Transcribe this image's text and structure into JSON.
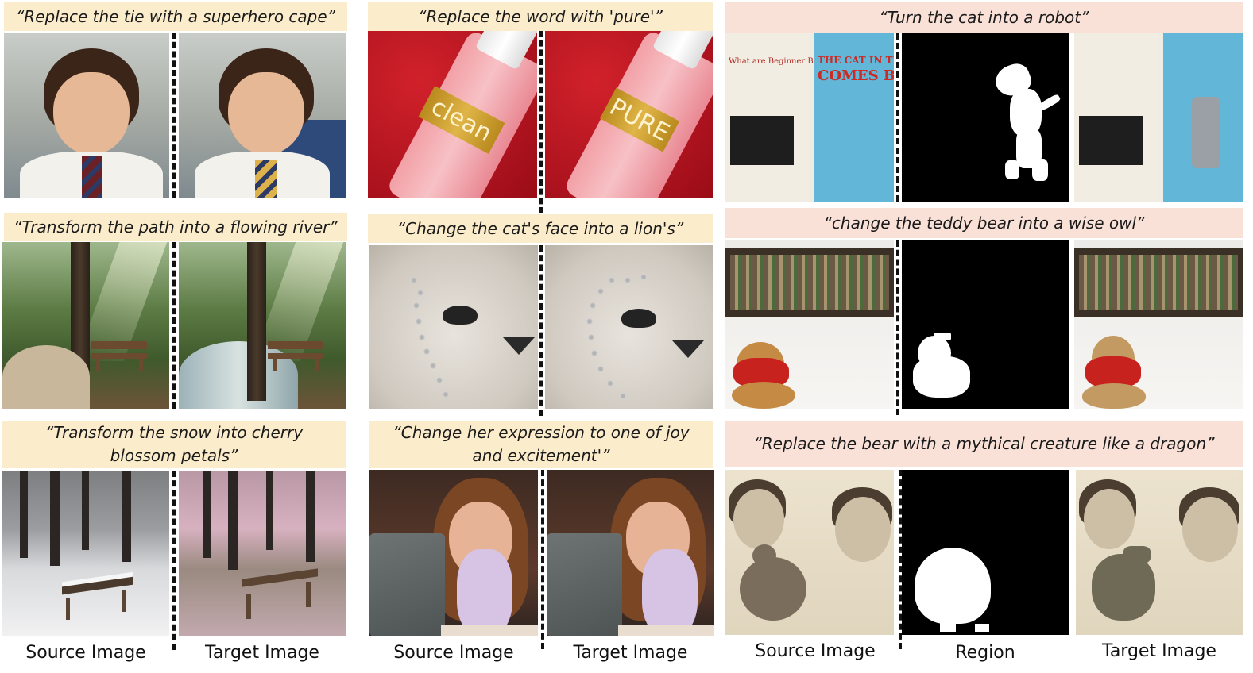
{
  "panels": [
    {
      "id": "tie",
      "prompt": "“Replace the tie with a superhero cape”",
      "prompt_color": "yellow"
    },
    {
      "id": "path",
      "prompt": "“Transform the path into a flowing river”",
      "prompt_color": "yellow"
    },
    {
      "id": "snow",
      "prompt_line1": "“Transform the snow into cherry",
      "prompt_line2": "blossom petals”",
      "prompt_color": "yellow"
    },
    {
      "id": "word",
      "prompt": "“Replace the word with 'pure'”",
      "prompt_color": "yellow",
      "source_text": "clean",
      "target_text": "PURE"
    },
    {
      "id": "cat-face",
      "prompt": "“Change the cat's face into a lion's”",
      "prompt_color": "yellow"
    },
    {
      "id": "expression",
      "prompt_line1": "“Change her expression to one of joy",
      "prompt_line2": "and excitement'”",
      "prompt_color": "yellow"
    },
    {
      "id": "robot",
      "prompt": "“Turn the cat into a robot”",
      "prompt_color": "pink",
      "book_title_line1": "THE CAT IN THE HA",
      "book_title_line2": "COMES BA",
      "book_header": "What are Beginner Books?"
    },
    {
      "id": "owl",
      "prompt": "“change the teddy bear into a wise owl”",
      "prompt_color": "pink"
    },
    {
      "id": "dragon",
      "prompt": "“Replace the bear with a mythical creature like a dragon”",
      "prompt_color": "pink"
    }
  ],
  "footer": {
    "col1_source": "Source Image",
    "col1_target": "Target Image",
    "col2_source": "Source Image",
    "col2_target": "Target Image",
    "col3_source": "Source Image",
    "col3_region": "Region",
    "col3_target": "Target Image"
  }
}
